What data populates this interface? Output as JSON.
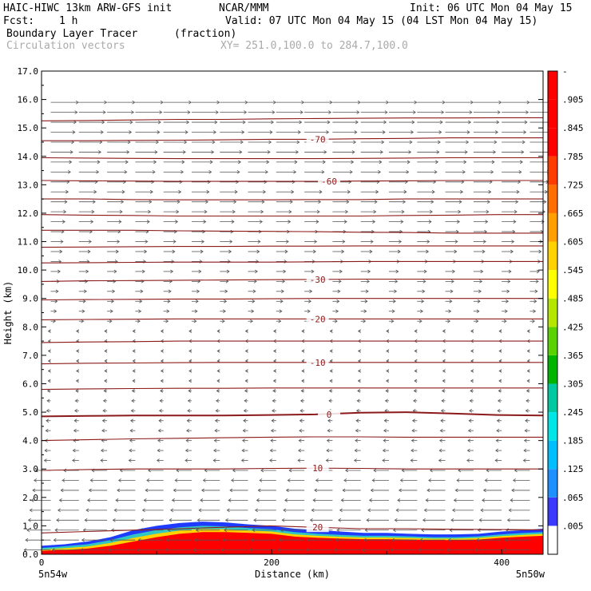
{
  "header": {
    "model": "HAIC-HIWC 13km ARW-GFS init",
    "org": "NCAR/MMM",
    "init": "Init: 06 UTC Mon 04 May 15",
    "fcst_label": "Fcst:",
    "fcst_value": "1 h",
    "valid": "Valid: 07 UTC Mon 04 May 15 (04 LST Mon 04 May 15)",
    "field": "Boundary Layer Tracer",
    "field_units": "(fraction)",
    "vectors": "Circulation vectors",
    "xy": "XY= 251.0,100.0 to 284.7,100.0"
  },
  "colors": {
    "contour": "#8b1a1a",
    "vector": "#555555",
    "colorbar": [
      "#ffffff",
      "#3a3aff",
      "#1e90ff",
      "#00bfff",
      "#00e5e5",
      "#00c8a0",
      "#00b400",
      "#5ad200",
      "#b4e600",
      "#ffff00",
      "#ffd200",
      "#ffa000",
      "#ff6e00",
      "#ff3c00",
      "#ff0000",
      "#ff0000",
      "#ff0000"
    ]
  },
  "chart_data": {
    "type": "cross-section",
    "xlabel": "Distance (km)",
    "ylabel": "Height (km)",
    "xlim": [
      0,
      436
    ],
    "ylim": [
      0,
      17
    ],
    "xticks": [
      "0",
      "200",
      "400"
    ],
    "yticks": [
      "0.0",
      "1.0",
      "2.0",
      "3.0",
      "4.0",
      "5.0",
      "6.0",
      "7.0",
      "8.0",
      "9.0",
      "10.0",
      "11.0",
      "12.0",
      "13.0",
      "14.0",
      "15.0",
      "16.0",
      "17.0"
    ],
    "x_end_labels": [
      "5n54w",
      "5n50w"
    ],
    "temperature_contours": [
      {
        "label": "20",
        "x": 240,
        "heights": [
          0.75,
          0.8,
          0.85,
          0.9,
          0.95,
          1.0,
          0.95,
          0.9,
          0.9,
          0.88,
          0.87,
          0.86
        ]
      },
      {
        "label": "10",
        "x": 240,
        "heights": [
          2.95,
          2.98,
          3.0,
          3.0,
          3.0,
          3.02,
          3.03,
          3.02,
          3.0,
          3.0,
          3.0,
          3.0
        ]
      },
      {
        "label": "",
        "x": 240,
        "heights": [
          4.0,
          4.03,
          4.06,
          4.08,
          4.1,
          4.12,
          4.13,
          4.13,
          4.12,
          4.12,
          4.12,
          4.12
        ]
      },
      {
        "label": "0",
        "x": 250,
        "heights": [
          4.85,
          4.87,
          4.88,
          4.88,
          4.88,
          4.9,
          4.92,
          4.98,
          5.0,
          4.95,
          4.9,
          4.88
        ]
      },
      {
        "label": "",
        "x": 240,
        "heights": [
          5.8,
          5.82,
          5.83,
          5.84,
          5.84,
          5.85,
          5.85,
          5.85,
          5.85,
          5.85,
          5.85,
          5.85
        ]
      },
      {
        "label": "-10",
        "x": 240,
        "heights": [
          6.7,
          6.72,
          6.73,
          6.74,
          6.75,
          6.75,
          6.75,
          6.75,
          6.75,
          6.75,
          6.75,
          6.75
        ]
      },
      {
        "label": "",
        "x": 240,
        "heights": [
          7.45,
          7.47,
          7.48,
          7.5,
          7.5,
          7.5,
          7.5,
          7.5,
          7.5,
          7.5,
          7.5,
          7.5
        ]
      },
      {
        "label": "-20",
        "x": 240,
        "heights": [
          8.25,
          8.26,
          8.27,
          8.28,
          8.28,
          8.28,
          8.28,
          8.28,
          8.28,
          8.28,
          8.28,
          8.28
        ]
      },
      {
        "label": "",
        "x": 240,
        "heights": [
          8.95,
          8.96,
          8.97,
          8.98,
          8.98,
          8.99,
          9.0,
          9.0,
          9.0,
          9.0,
          9.0,
          9.0
        ]
      },
      {
        "label": "-30",
        "x": 240,
        "heights": [
          9.6,
          9.62,
          9.63,
          9.64,
          9.65,
          9.66,
          9.67,
          9.68,
          9.68,
          9.68,
          9.68,
          9.68
        ]
      },
      {
        "label": "",
        "x": 240,
        "heights": [
          10.25,
          10.26,
          10.27,
          10.28,
          10.28,
          10.28,
          10.29,
          10.3,
          10.3,
          10.3,
          10.3,
          10.3
        ]
      },
      {
        "label": "",
        "x": 240,
        "heights": [
          10.8,
          10.81,
          10.82,
          10.83,
          10.83,
          10.84,
          10.84,
          10.85,
          10.85,
          10.85,
          10.85,
          10.85
        ]
      },
      {
        "label": "",
        "x": 240,
        "heights": [
          11.4,
          11.4,
          11.4,
          11.38,
          11.37,
          11.36,
          11.35,
          11.33,
          11.32,
          11.3,
          11.3,
          11.3
        ]
      },
      {
        "label": "",
        "x": 240,
        "heights": [
          11.95,
          11.93,
          11.92,
          11.9,
          11.9,
          11.9,
          11.9,
          11.9,
          11.92,
          11.93,
          11.95,
          11.95
        ]
      },
      {
        "label": "",
        "x": 240,
        "heights": [
          12.5,
          12.5,
          12.48,
          12.47,
          12.47,
          12.47,
          12.48,
          12.48,
          12.5,
          12.5,
          12.5,
          12.5
        ]
      },
      {
        "label": "-60",
        "x": 250,
        "heights": [
          13.15,
          13.14,
          13.13,
          13.12,
          13.12,
          13.12,
          13.12,
          13.13,
          13.14,
          13.15,
          13.15,
          13.15
        ]
      },
      {
        "label": "",
        "x": 240,
        "heights": [
          13.95,
          13.94,
          13.93,
          13.92,
          13.92,
          13.92,
          13.92,
          13.93,
          13.94,
          13.95,
          13.95,
          13.95
        ]
      },
      {
        "label": "-70",
        "x": 240,
        "heights": [
          14.55,
          14.55,
          14.56,
          14.57,
          14.58,
          14.6,
          14.6,
          14.62,
          14.63,
          14.65,
          14.65,
          14.65
        ]
      },
      {
        "label": "",
        "x": 240,
        "heights": [
          15.25,
          15.26,
          15.28,
          15.3,
          15.3,
          15.32,
          15.33,
          15.34,
          15.35,
          15.35,
          15.36,
          15.36
        ]
      }
    ],
    "tracer_fill": {
      "x": [
        0,
        20,
        40,
        60,
        80,
        100,
        120,
        140,
        160,
        180,
        200,
        220,
        240,
        260,
        280,
        300,
        320,
        340,
        360,
        380,
        400,
        420,
        436
      ],
      "top_blue": [
        0.3,
        0.35,
        0.45,
        0.6,
        0.85,
        1.0,
        1.1,
        1.15,
        1.12,
        1.05,
        1.0,
        0.9,
        0.85,
        0.8,
        0.75,
        0.75,
        0.72,
        0.7,
        0.7,
        0.72,
        0.8,
        0.85,
        0.9
      ],
      "top_green": [
        0.22,
        0.28,
        0.35,
        0.5,
        0.7,
        0.85,
        0.95,
        1.0,
        0.98,
        0.92,
        0.88,
        0.78,
        0.72,
        0.68,
        0.65,
        0.65,
        0.63,
        0.6,
        0.6,
        0.63,
        0.7,
        0.75,
        0.78
      ],
      "top_red": [
        0.12,
        0.15,
        0.2,
        0.3,
        0.45,
        0.6,
        0.72,
        0.78,
        0.78,
        0.75,
        0.72,
        0.62,
        0.58,
        0.55,
        0.53,
        0.53,
        0.52,
        0.5,
        0.5,
        0.52,
        0.58,
        0.62,
        0.65
      ]
    },
    "colorbar_ticks": [
      "-",
      ".905",
      ".845",
      ".785",
      ".725",
      ".665",
      ".605",
      ".545",
      ".485",
      ".425",
      ".365",
      ".305",
      ".245",
      ".185",
      ".125",
      ".065",
      ".005"
    ]
  }
}
